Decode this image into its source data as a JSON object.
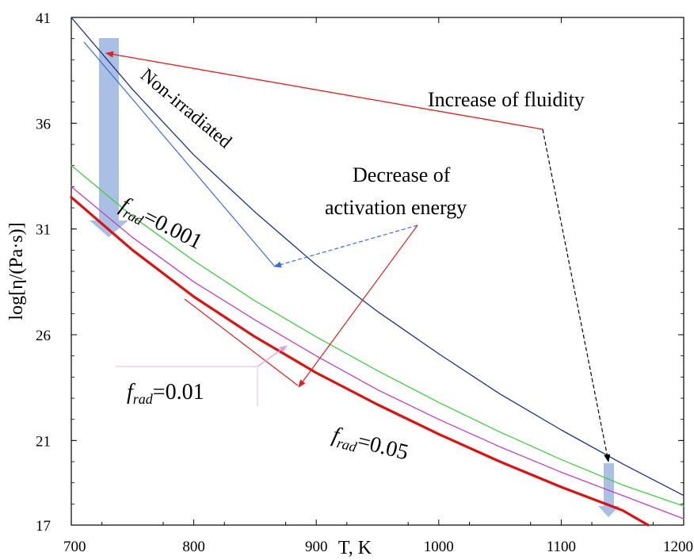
{
  "chart_data": {
    "type": "line",
    "xlabel": "T, K",
    "ylabel": "log[η/(Pa·s)]",
    "xlim": [
      700,
      1200
    ],
    "ylim": [
      17,
      41
    ],
    "x_ticks": [
      "700",
      "800",
      "900",
      "1000",
      "1100",
      "1200"
    ],
    "y_ticks": [
      "17",
      "21",
      "26",
      "31",
      "36",
      "41"
    ],
    "grid": false,
    "series": [
      {
        "name": "Non-irradiated",
        "color": "#1f2f8f",
        "x": [
          700,
          750,
          800,
          850,
          900,
          950,
          1000,
          1050,
          1100,
          1150,
          1200
        ],
        "y": [
          41.0,
          37.6,
          34.5,
          31.8,
          29.3,
          27.1,
          25.1,
          23.2,
          21.5,
          19.9,
          18.4
        ]
      },
      {
        "name": "f_rad=0.001",
        "color": "#44cc44",
        "x": [
          700,
          750,
          800,
          850,
          900,
          950,
          1000,
          1050,
          1100,
          1150,
          1200
        ],
        "y": [
          34.0,
          31.6,
          29.5,
          27.6,
          25.9,
          24.3,
          22.8,
          21.4,
          20.1,
          18.9,
          17.9
        ]
      },
      {
        "name": "f_rad=0.01",
        "color": "#c040c0",
        "x": [
          700,
          750,
          800,
          850,
          900,
          950,
          1000,
          1050,
          1100,
          1150,
          1200
        ],
        "y": [
          33.0,
          30.6,
          28.5,
          26.7,
          25.0,
          23.4,
          22.0,
          20.7,
          19.5,
          18.4,
          17.3
        ]
      },
      {
        "name": "f_rad=0.05",
        "color": "#dd1111",
        "x": [
          700,
          750,
          800,
          850,
          900,
          950,
          1000,
          1050,
          1100,
          1150,
          1171
        ],
        "y": [
          32.5,
          30.0,
          27.8,
          25.9,
          24.2,
          22.7,
          21.3,
          20.0,
          18.8,
          17.7,
          17.0
        ]
      }
    ],
    "annotations": {
      "fluidity": "Increase of fluidity",
      "decrease_line1": "Decrease of",
      "decrease_line2": "activation energy",
      "non_irradiated": "Non-irradiated",
      "f_symbol": "f",
      "f_subscript": "rad",
      "f001_value": "=0.001",
      "f01_value": "=0.01",
      "f05_value": "=0.05"
    }
  }
}
